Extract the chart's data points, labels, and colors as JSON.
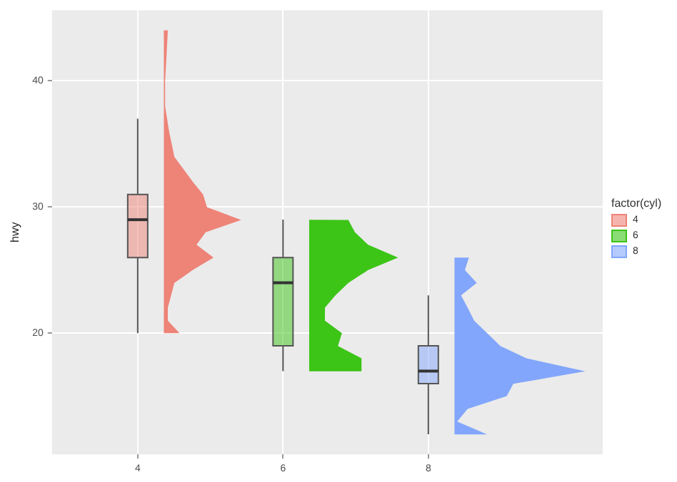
{
  "chart_data": {
    "type": "box",
    "ylabel": "hwy",
    "legend_title": "factor(cyl)",
    "legend": "right",
    "grid": true,
    "categories": [
      "4",
      "6",
      "8"
    ],
    "ylim": [
      10.4,
      45.6
    ],
    "yticks": [
      20,
      30,
      40
    ],
    "series": [
      {
        "name": "4",
        "color": "#ee8378",
        "boxes": [
          {
            "low": 20,
            "q1": 26,
            "median": 29,
            "q3": 31,
            "high": 37
          },
          null,
          null
        ]
      },
      {
        "name": "6",
        "color": "#3cc417",
        "boxes": [
          null,
          {
            "low": 17,
            "q1": 19,
            "median": 24,
            "q3": 26,
            "high": 29
          },
          null
        ]
      },
      {
        "name": "8",
        "color": "#82a6fb",
        "boxes": [
          null,
          null,
          {
            "low": 12,
            "q1": 16,
            "median": 17,
            "q3": 19,
            "high": 23
          }
        ]
      }
    ]
  }
}
